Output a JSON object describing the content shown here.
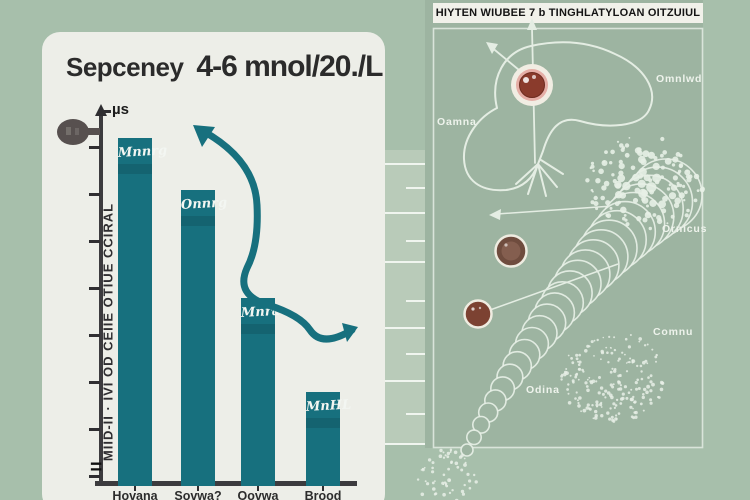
{
  "colors": {
    "background": "#a7bfab",
    "card_bg": "#edeee8",
    "bar_teal": "#17707e",
    "axis_dark": "#3c3b3e",
    "panel_green": "#9db4a1",
    "strip_green": "#b9cbb9",
    "titlebar_bg": "#f1f1ea",
    "diagram_line": "#e4ede3",
    "cell_core": "#8a3b2c",
    "cell_ring": "#e5aea6",
    "brown_circle": "#6f4c3e",
    "brown_circle_2": "#7c4232",
    "title_text": "#2b2b2b"
  },
  "chart_card": {
    "title_left": "Sepceney",
    "title_right": "4-6 mnol/20./L",
    "y_axis_unit": "µs",
    "y_axis_label": "MIID-II · IVI OD CEIIE OTIUE CCIRAL",
    "origin_mark": "="
  },
  "chart_data": {
    "type": "bar",
    "title": "Sepceney 4-6 mnol/20./L",
    "categories": [
      "Hovana",
      "Sovwa?",
      "Oovwa",
      "Brood"
    ],
    "values": [
      7.4,
      6.3,
      4.0,
      2.0
    ],
    "bar_labels": [
      "Mnnrg",
      "Onnrg",
      "Mnra",
      "MnHL"
    ],
    "bar_color": "#17707e",
    "xlabel": "",
    "ylabel": "MIID-II · IVI OD CEIIE OTIUE CCIRAL",
    "y_unit": "µs",
    "ylim": [
      0,
      7.8
    ],
    "y_ticks_unlabeled": 8,
    "grid": false,
    "legend": false,
    "annotations": [
      "teal S-shaped decreasing trend arrow from first bar down to last bar"
    ],
    "note": "y-axis ticks carry no numeric labels; values estimated in tick units"
  },
  "right_panel": {
    "title": "HIYTEN WIUBEE 7 b TINGHLATYLOAN OITZUIUL",
    "labels": {
      "cell_left": "Oamna",
      "blob_right": "Omnlwd",
      "cluster_right": "Ornicus",
      "cone_right": "Comnu",
      "stipple_left": "Odina"
    }
  }
}
